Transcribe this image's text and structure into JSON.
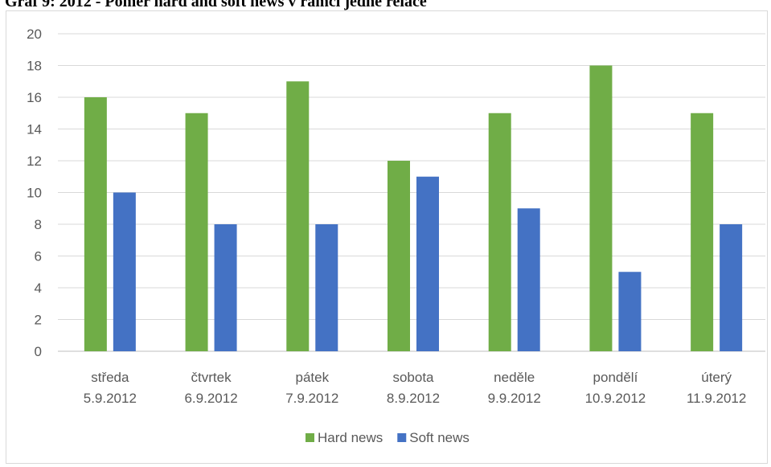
{
  "caption": "Graf 9: 2012 - Poměr hard and soft news v rámci jedné relace",
  "chart_data": {
    "type": "bar",
    "categories": [
      [
        "středa",
        "5.9.2012"
      ],
      [
        "čtvrtek",
        "6.9.2012"
      ],
      [
        "pátek",
        "7.9.2012"
      ],
      [
        "sobota",
        "8.9.2012"
      ],
      [
        "neděle",
        "9.9.2012"
      ],
      [
        "pondělí",
        "10.9.2012"
      ],
      [
        "úterý",
        "11.9.2012"
      ]
    ],
    "series": [
      {
        "name": "Hard news",
        "color": "#70ad47",
        "values": [
          16,
          15,
          17,
          12,
          15,
          18,
          15
        ]
      },
      {
        "name": "Soft news",
        "color": "#4472c4",
        "values": [
          10,
          8,
          8,
          11,
          9,
          5,
          8
        ]
      }
    ],
    "ylim": [
      0,
      20
    ],
    "yticks": [
      0,
      2,
      4,
      6,
      8,
      10,
      12,
      14,
      16,
      18,
      20
    ],
    "grid": true,
    "legend_position": "bottom"
  }
}
